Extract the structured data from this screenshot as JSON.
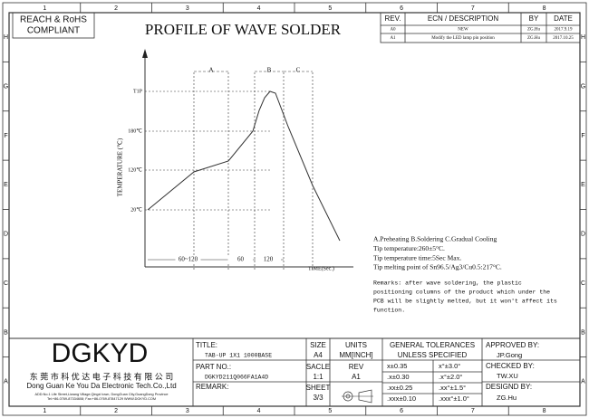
{
  "zones": {
    "columns": [
      "1",
      "2",
      "3",
      "4",
      "5",
      "6",
      "7",
      "8"
    ],
    "rows": [
      "H",
      "G",
      "F",
      "E",
      "D",
      "C",
      "B",
      "A"
    ]
  },
  "compliance": [
    "REACH & RoHS",
    "COMPLIANT"
  ],
  "revisions": {
    "header": [
      "REV.",
      "ECN / DESCRIPTION",
      "BY",
      "DATE"
    ],
    "rows": [
      [
        "A0",
        "NEW",
        "ZG.Hu",
        "2017.9.19"
      ],
      [
        "A1",
        "Modify the LED lamp pin position",
        "ZG.Hu",
        "2017.10.25"
      ]
    ]
  },
  "title": "PROFILE OF WAVE SOLDER",
  "profile": {
    "y_axis_label": "TEMPERATURE (℃)",
    "y_labels": [
      "T1P",
      "180℃",
      "120℃",
      "20℃"
    ],
    "phases": [
      "A",
      "B",
      "C"
    ],
    "durations": [
      "60~120",
      "60",
      "120"
    ],
    "x_axis_label": "TIME(Sec.)"
  },
  "notes": [
    "A.Preheating  B.Soldering  C.Gradual Cooling",
    "Tip temperature:260±5°C.",
    "Tip temperature time:5Sec Max.",
    "Tip melting point of Sn96.5/Ag3/Cu0.5:217°C."
  ],
  "remarks": [
    "Remarks: after wave soldering, the plastic",
    "positioning columns of the product  which under the",
    "PCB will be slightly melted, but it won't affect its",
    "function."
  ],
  "title_block": {
    "logo": "DGKYD",
    "company_cn": "东 莞 市 科 优 达 电 子 科 技 有 限 公 司",
    "company_en": "Dong Guan Ke You Da Electronic Tech.Co.,Ltd",
    "address": "ADD:No.1 Life Street,Liwang Village,Qingxi town, DongGuan City,GuangDong Province",
    "contact": "Tel:+86-0769-87334608; Fax:+86-0769-87847129  WWW.DGKYD.COM",
    "title_label": "TITLE:",
    "title_value": "TAB-UP 1X1 1000BASE",
    "part_label": "PART NO.:",
    "part_value": "DGKYD211Q066FA1A4D",
    "remark_label": "REMARK:",
    "size_label": "SIZE",
    "size_value": "A4",
    "scale_label": "SACLE",
    "scale_value": "1:1",
    "sheet_label": "SHEET",
    "sheet_value": "3/3",
    "units_label": "UNITS",
    "units_value": "MM[INCH]",
    "rev_label": "REV",
    "rev_value": "A1",
    "tolerance_header": [
      "GENERAL TOLERANCES",
      "UNLESS SPECIFIED"
    ],
    "tolerances": [
      [
        "x±0.35",
        "x°±3.0°"
      ],
      [
        ".x±0.30",
        ".x°±2.0°"
      ],
      [
        ".xx±0.25",
        ".xx°±1.5°"
      ],
      [
        ".xxx±0.10",
        ".xxx°±1.0°"
      ]
    ],
    "approved_label": "APPROVED BY:",
    "approved_value": "JP.Gong",
    "checked_label": "CHECKED BY:",
    "checked_value": "TW.XU",
    "designed_label": "DESIGND BY:",
    "designed_value": "ZG.Hu"
  }
}
